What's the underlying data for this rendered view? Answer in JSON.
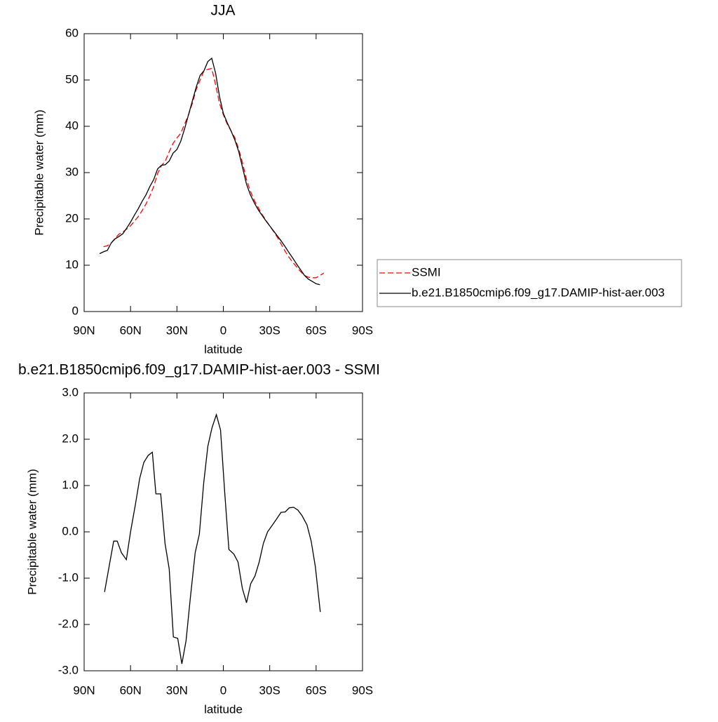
{
  "chart_data": [
    {
      "type": "line",
      "title": "JJA",
      "x_label": "latitude",
      "y_label": "Precipitable water (mm)",
      "x": [
        80,
        77.5,
        75,
        72.5,
        70,
        67.5,
        65,
        62.5,
        60,
        57.5,
        55,
        52.5,
        50,
        47.5,
        45,
        42.5,
        40,
        37.5,
        35,
        32.5,
        30,
        27.5,
        25,
        22.5,
        20,
        17.5,
        15,
        12.5,
        10,
        7.5,
        5,
        2.5,
        0,
        -2.5,
        -5,
        -7.5,
        -10,
        -12.5,
        -15,
        -17.5,
        -20,
        -22.5,
        -25,
        -27.5,
        -30,
        -32.5,
        -35,
        -37.5,
        -40,
        -42.5,
        -45,
        -47.5,
        -50,
        -52.5,
        -55,
        -57.5,
        -60,
        -62.5,
        -65
      ],
      "series": [
        {
          "name": "SSMI",
          "color": "#ff0000",
          "dashed": true,
          "values": [
            null,
            14,
            14.2,
            14.8,
            15.8,
            16.7,
            17.2,
            17.8,
            18.5,
            19.5,
            20.5,
            21.8,
            23.2,
            25,
            27,
            29.8,
            31.5,
            32.5,
            34.5,
            36.3,
            37.5,
            38.5,
            40.5,
            42.5,
            45,
            48,
            50,
            52,
            52.3,
            52.5,
            49,
            45,
            42.5,
            40.5,
            39,
            37.5,
            35,
            32,
            28.5,
            26,
            24,
            22.5,
            21,
            19.7,
            18.5,
            17.3,
            16,
            14.5,
            13,
            11.7,
            10.6,
            9.6,
            8.6,
            7.8,
            7.4,
            7.3,
            7.3,
            7.8,
            8.3
          ]
        },
        {
          "name": "b.e21.B1850cmip6.f09_g17.DAMIP-hist-aer.003",
          "color": "#000000",
          "dashed": false,
          "values": [
            12.5,
            12.9,
            13.2,
            14.8,
            15.7,
            16.2,
            16.8,
            18,
            19.3,
            20.8,
            22.2,
            23.8,
            25.2,
            27,
            28.5,
            30.8,
            31.6,
            31.7,
            32.5,
            34.2,
            35,
            36.8,
            39.5,
            42.5,
            45.5,
            48.5,
            51,
            52,
            54,
            54.7,
            51.5,
            46.5,
            42.8,
            40.8,
            39,
            37,
            34.5,
            31,
            27.5,
            25.2,
            23.5,
            22,
            20.8,
            19.6,
            18.5,
            17.4,
            16.3,
            15.2,
            14,
            12.7,
            11.5,
            10.2,
            9,
            7.8,
            7,
            6.5,
            6,
            5.8,
            null
          ]
        }
      ],
      "xlim": [
        90,
        -90
      ],
      "xticks": [
        {
          "value": 90,
          "label": "90N"
        },
        {
          "value": 60,
          "label": "60N"
        },
        {
          "value": 30,
          "label": "30N"
        },
        0,
        {
          "value": -30,
          "label": "30S"
        },
        {
          "value": -60,
          "label": "60S"
        },
        {
          "value": -90,
          "label": "90S"
        }
      ],
      "ylim": [
        0,
        60
      ],
      "yticks": [
        0,
        10,
        20,
        30,
        40,
        50,
        60
      ],
      "legend": "right"
    },
    {
      "type": "line",
      "title": "b.e21.B1850cmip6.f09_g17.DAMIP-hist-aer.003 - SSMI",
      "x_label": "latitude",
      "y_label": "Precipitable water (mm)",
      "x": [
        76.8,
        73.6,
        70.9,
        68.6,
        65.9,
        62.7,
        60,
        56.8,
        54.1,
        51.4,
        48.6,
        45.9,
        43.6,
        40.5,
        37.7,
        35,
        32.3,
        29.5,
        26.8,
        24.1,
        21.4,
        18.2,
        15.5,
        12.7,
        10,
        7.3,
        4.5,
        1.8,
        -0.9,
        -3.6,
        -6.8,
        -9.5,
        -12.3,
        -15,
        -17.7,
        -20.5,
        -23.2,
        -25.9,
        -28.6,
        -31.8,
        -34.5,
        -37.3,
        -40,
        -42.7,
        -45.5,
        -48.2,
        -50.9,
        -54.1,
        -56.8,
        -59.5,
        -62.7
      ],
      "values": [
        -1.3,
        -0.7,
        -0.2,
        -0.2,
        -0.45,
        -0.6,
        0,
        0.6,
        1.15,
        1.5,
        1.65,
        1.72,
        0.82,
        0.82,
        -0.25,
        -0.8,
        -2.27,
        -2.3,
        -2.85,
        -2.35,
        -1.45,
        -0.45,
        -0.05,
        1.05,
        1.85,
        2.25,
        2.53,
        2.2,
        0.85,
        -0.38,
        -0.48,
        -0.65,
        -1.22,
        -1.53,
        -1.12,
        -0.95,
        -0.65,
        -0.25,
        0,
        0.15,
        0.28,
        0.42,
        0.43,
        0.52,
        0.53,
        0.47,
        0.35,
        0.15,
        -0.2,
        -0.75,
        -1.73
      ],
      "color": "#000000",
      "xlim": [
        90,
        -90
      ],
      "xticks": [
        {
          "value": 90,
          "label": "90N"
        },
        {
          "value": 60,
          "label": "60N"
        },
        {
          "value": 30,
          "label": "30N"
        },
        0,
        {
          "value": -30,
          "label": "30S"
        },
        {
          "value": -60,
          "label": "60S"
        },
        {
          "value": -90,
          "label": "90S"
        }
      ],
      "ylim": [
        -3,
        3
      ],
      "yticks": [
        {
          "value": -3,
          "label": "-3.0"
        },
        {
          "value": -2,
          "label": "-2.0"
        },
        {
          "value": -1,
          "label": "-1.0"
        },
        {
          "value": 0,
          "label": "0.0"
        },
        {
          "value": 1,
          "label": "1.0"
        },
        {
          "value": 2,
          "label": "2.0"
        },
        {
          "value": 3,
          "label": "3.0"
        }
      ]
    }
  ]
}
